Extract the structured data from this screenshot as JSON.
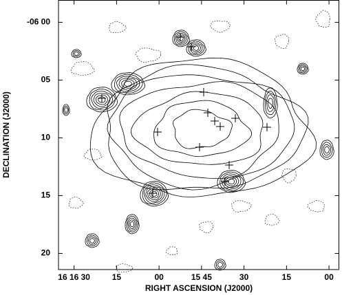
{
  "chart_data": {
    "type": "contour",
    "xlabel": "RIGHT ASCENSION (J2000)",
    "ylabel": "DECLINATION (J2000)",
    "xlim": [
      995.5,
      896.5
    ],
    "xticks": [
      {
        "value": 990,
        "label": "16 16 30"
      },
      {
        "value": 975,
        "label": "15"
      },
      {
        "value": 960,
        "label": "00"
      },
      {
        "value": 945,
        "label": "15 45"
      },
      {
        "value": 930,
        "label": "30"
      },
      {
        "value": 915,
        "label": "15"
      },
      {
        "value": 900,
        "label": "00"
      }
    ],
    "ylim": [
      21.4,
      -1.9
    ],
    "yticks": [
      {
        "value": 0,
        "label": "-06 00"
      },
      {
        "value": 5,
        "label": "05"
      },
      10,
      15,
      20
    ]
  }
}
